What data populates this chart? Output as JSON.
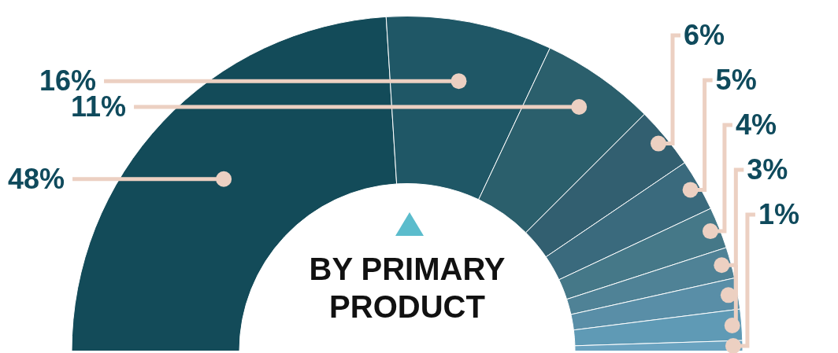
{
  "chart_data": {
    "type": "donut",
    "title": "BY PRIMARY PRODUCT",
    "categories": [
      null,
      null,
      null,
      null,
      null,
      null,
      null,
      null,
      null,
      null
    ],
    "values": [
      48,
      16,
      11,
      6,
      5,
      4,
      3,
      3,
      3,
      1
    ],
    "colors": [
      "#134b59",
      "#1f5766",
      "#2b5f6c",
      "#325f70",
      "#3a6a7d",
      "#457888",
      "#4f8296",
      "#598ea7",
      "#5f9ab5",
      "#6aa3c0"
    ],
    "value_labels": [
      "48%",
      "16%",
      "11%",
      "6%",
      "5%",
      "4%",
      "3%",
      null,
      null,
      "1%"
    ]
  }
}
